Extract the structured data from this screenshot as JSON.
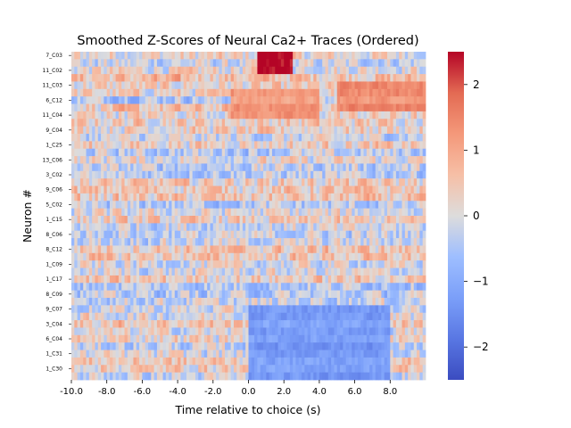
{
  "chart_data": {
    "type": "heatmap",
    "title": "Smoothed Z-Scores of Neural Ca2+ Traces (Ordered)",
    "xlabel": "Time relative to choice (s)",
    "ylabel": "Neuron #",
    "xlim": [
      -10.0,
      10.0
    ],
    "x_ticks": [
      -10.0,
      -8.0,
      -6.0,
      -4.0,
      -2.0,
      0.0,
      2.0,
      4.0,
      6.0,
      8.0
    ],
    "x_tick_labels": [
      "-10.0",
      "-8.0",
      "-6.0",
      "-4.0",
      "-2.0",
      "0.0",
      "2.0",
      "4.0",
      "6.0",
      "8.0"
    ],
    "y_tick_labels": [
      "7_C03",
      "11_C02",
      "11_C03",
      "6_C12",
      "11_C04",
      "9_C04",
      "1_C25",
      "13_C06",
      "3_C02",
      "9_C06",
      "5_C02",
      "1_C15",
      "8_C06",
      "8_C12",
      "1_C09",
      "1_C17",
      "8_C09",
      "9_C07",
      "3_C04",
      "6_C04",
      "1_C31",
      "1_C30"
    ],
    "n_rows": 44,
    "n_cols": 120,
    "colorbar": {
      "vmin": -2.5,
      "vmax": 2.5,
      "ticks": [
        -2,
        -1,
        0,
        1,
        2
      ],
      "tick_labels": [
        "−2",
        "−1",
        "0",
        "1",
        "2"
      ],
      "colormap": "coolwarm"
    },
    "features": [
      {
        "row_start": 0,
        "row_end": 2,
        "x_start": 0.5,
        "x_end": 2.5,
        "value": 2.5,
        "note": "strong positive burst"
      },
      {
        "row_start": 5,
        "row_end": 8,
        "x_start": -1.0,
        "x_end": 4.0,
        "value": 1.2
      },
      {
        "row_start": 34,
        "row_end": 43,
        "x_start": 0.0,
        "x_end": 8.0,
        "value": -1.3
      },
      {
        "row_start": 4,
        "row_end": 7,
        "x_start": 5.0,
        "x_end": 10.0,
        "value": 1.4
      }
    ]
  }
}
